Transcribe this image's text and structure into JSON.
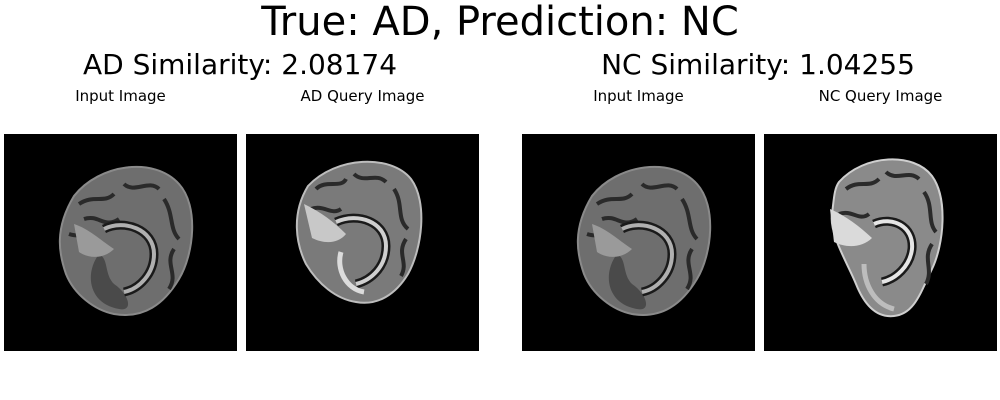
{
  "figure": {
    "title": "True: AD, Prediction: NC"
  },
  "groups": [
    {
      "title": "AD Similarity: 2.08174",
      "panels": [
        {
          "label": "Input Image"
        },
        {
          "label": "AD Query Image"
        }
      ]
    },
    {
      "title": "NC Similarity: 1.04255",
      "panels": [
        {
          "label": "Input Image"
        },
        {
          "label": "NC Query Image"
        }
      ]
    }
  ]
}
